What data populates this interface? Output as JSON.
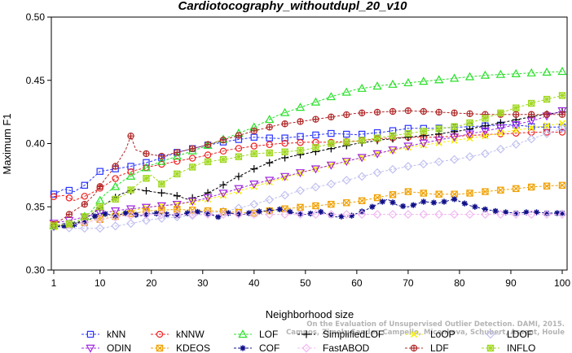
{
  "chart_data": {
    "type": "line",
    "title": "Cardiotocography_withoutdupl_20_v10",
    "xlabel": "Neighborhood size",
    "ylabel": "Maximum F1",
    "xlim": [
      1,
      100
    ],
    "ylim": [
      0.3,
      0.5
    ],
    "xticks": [
      1,
      10,
      20,
      30,
      40,
      50,
      60,
      70,
      80,
      90,
      100
    ],
    "yticks": [
      0.3,
      0.35,
      0.4,
      0.45,
      0.5
    ],
    "ytick_labels": [
      "0.30",
      "0.35",
      "0.40",
      "0.45",
      "0.50"
    ],
    "grid": false,
    "legend_position": "bottom",
    "series": [
      {
        "name": "kNN",
        "color": "#2a35ff",
        "marker": "square",
        "points": [
          [
            1,
            0.36
          ],
          [
            3,
            0.364
          ],
          [
            5,
            0.362
          ],
          [
            7,
            0.367
          ],
          [
            10,
            0.378
          ],
          [
            13,
            0.38
          ],
          [
            16,
            0.382
          ],
          [
            20,
            0.386
          ],
          [
            25,
            0.393
          ],
          [
            30,
            0.398
          ],
          [
            35,
            0.402
          ],
          [
            40,
            0.405
          ],
          [
            45,
            0.404
          ],
          [
            50,
            0.406
          ],
          [
            55,
            0.408
          ],
          [
            60,
            0.407
          ],
          [
            65,
            0.409
          ],
          [
            70,
            0.412
          ],
          [
            75,
            0.412
          ],
          [
            80,
            0.413
          ],
          [
            85,
            0.414
          ],
          [
            90,
            0.415
          ],
          [
            95,
            0.413
          ],
          [
            100,
            0.413
          ]
        ]
      },
      {
        "name": "kNNW",
        "color": "#f02020",
        "marker": "circle",
        "points": [
          [
            1,
            0.358
          ],
          [
            3,
            0.359
          ],
          [
            5,
            0.355
          ],
          [
            8,
            0.36
          ],
          [
            11,
            0.367
          ],
          [
            14,
            0.375
          ],
          [
            17,
            0.379
          ],
          [
            20,
            0.382
          ],
          [
            25,
            0.386
          ],
          [
            30,
            0.39
          ],
          [
            35,
            0.395
          ],
          [
            40,
            0.398
          ],
          [
            45,
            0.4
          ],
          [
            50,
            0.401
          ],
          [
            55,
            0.401
          ],
          [
            60,
            0.402
          ],
          [
            65,
            0.404
          ],
          [
            70,
            0.405
          ],
          [
            75,
            0.405
          ],
          [
            80,
            0.406
          ],
          [
            85,
            0.407
          ],
          [
            90,
            0.408
          ],
          [
            95,
            0.409
          ],
          [
            100,
            0.409
          ]
        ]
      },
      {
        "name": "LOF",
        "color": "#28e028",
        "marker": "triangle",
        "points": [
          [
            1,
            0.335
          ],
          [
            5,
            0.337
          ],
          [
            8,
            0.345
          ],
          [
            11,
            0.36
          ],
          [
            15,
            0.372
          ],
          [
            20,
            0.383
          ],
          [
            25,
            0.39
          ],
          [
            30,
            0.397
          ],
          [
            35,
            0.405
          ],
          [
            40,
            0.413
          ],
          [
            45,
            0.423
          ],
          [
            50,
            0.43
          ],
          [
            55,
            0.437
          ],
          [
            60,
            0.443
          ],
          [
            65,
            0.446
          ],
          [
            70,
            0.448
          ],
          [
            75,
            0.45
          ],
          [
            80,
            0.452
          ],
          [
            85,
            0.454
          ],
          [
            90,
            0.455
          ],
          [
            95,
            0.456
          ],
          [
            100,
            0.457
          ]
        ]
      },
      {
        "name": "SimplifiedLOF",
        "color": "#000000",
        "marker": "plus",
        "points": [
          [
            1,
            0.335
          ],
          [
            5,
            0.336
          ],
          [
            8,
            0.343
          ],
          [
            11,
            0.352
          ],
          [
            14,
            0.36
          ],
          [
            17,
            0.364
          ],
          [
            20,
            0.362
          ],
          [
            24,
            0.36
          ],
          [
            27,
            0.356
          ],
          [
            30,
            0.359
          ],
          [
            33,
            0.365
          ],
          [
            36,
            0.372
          ],
          [
            40,
            0.38
          ],
          [
            45,
            0.388
          ],
          [
            50,
            0.392
          ],
          [
            55,
            0.396
          ],
          [
            60,
            0.4
          ],
          [
            65,
            0.403
          ],
          [
            70,
            0.405
          ],
          [
            75,
            0.407
          ],
          [
            80,
            0.41
          ],
          [
            85,
            0.414
          ],
          [
            90,
            0.418
          ],
          [
            95,
            0.422
          ],
          [
            100,
            0.425
          ]
        ]
      },
      {
        "name": "LoOP",
        "color": "#f5f000",
        "marker": "x",
        "points": [
          [
            1,
            0.334
          ],
          [
            5,
            0.336
          ],
          [
            10,
            0.342
          ],
          [
            15,
            0.346
          ],
          [
            20,
            0.35
          ],
          [
            25,
            0.352
          ],
          [
            30,
            0.355
          ],
          [
            35,
            0.36
          ],
          [
            40,
            0.366
          ],
          [
            45,
            0.372
          ],
          [
            50,
            0.378
          ],
          [
            55,
            0.383
          ],
          [
            60,
            0.388
          ],
          [
            65,
            0.393
          ],
          [
            70,
            0.397
          ],
          [
            75,
            0.4
          ],
          [
            80,
            0.403
          ],
          [
            85,
            0.406
          ],
          [
            90,
            0.41
          ],
          [
            95,
            0.413
          ],
          [
            100,
            0.416
          ]
        ]
      },
      {
        "name": "LDOF",
        "color": "#c0c0f0",
        "marker": "diamond",
        "points": [
          [
            1,
            0.334
          ],
          [
            5,
            0.333
          ],
          [
            10,
            0.333
          ],
          [
            15,
            0.336
          ],
          [
            20,
            0.34
          ],
          [
            25,
            0.342
          ],
          [
            30,
            0.344
          ],
          [
            35,
            0.347
          ],
          [
            40,
            0.352
          ],
          [
            45,
            0.358
          ],
          [
            50,
            0.364
          ],
          [
            55,
            0.368
          ],
          [
            60,
            0.373
          ],
          [
            65,
            0.378
          ],
          [
            70,
            0.382
          ],
          [
            75,
            0.385
          ],
          [
            80,
            0.388
          ],
          [
            85,
            0.392
          ],
          [
            90,
            0.398
          ],
          [
            95,
            0.405
          ],
          [
            100,
            0.412
          ]
        ]
      },
      {
        "name": "ODIN",
        "color": "#a028e0",
        "marker": "triangle-down",
        "points": [
          [
            1,
            0.337
          ],
          [
            5,
            0.34
          ],
          [
            10,
            0.345
          ],
          [
            15,
            0.348
          ],
          [
            20,
            0.35
          ],
          [
            25,
            0.352
          ],
          [
            30,
            0.356
          ],
          [
            35,
            0.362
          ],
          [
            40,
            0.368
          ],
          [
            45,
            0.373
          ],
          [
            50,
            0.378
          ],
          [
            55,
            0.383
          ],
          [
            60,
            0.388
          ],
          [
            65,
            0.393
          ],
          [
            70,
            0.398
          ],
          [
            75,
            0.402
          ],
          [
            80,
            0.406
          ],
          [
            85,
            0.41
          ],
          [
            90,
            0.414
          ],
          [
            95,
            0.419
          ],
          [
            100,
            0.426
          ]
        ]
      },
      {
        "name": "KDEOS",
        "color": "#f0a000",
        "marker": "square-x",
        "points": [
          [
            1,
            0.336
          ],
          [
            5,
            0.336
          ],
          [
            10,
            0.34
          ],
          [
            15,
            0.344
          ],
          [
            20,
            0.347
          ],
          [
            25,
            0.348
          ],
          [
            30,
            0.347
          ],
          [
            35,
            0.346
          ],
          [
            40,
            0.345
          ],
          [
            45,
            0.348
          ],
          [
            50,
            0.35
          ],
          [
            55,
            0.352
          ],
          [
            60,
            0.354
          ],
          [
            65,
            0.358
          ],
          [
            70,
            0.362
          ],
          [
            75,
            0.36
          ],
          [
            80,
            0.36
          ],
          [
            85,
            0.362
          ],
          [
            90,
            0.364
          ],
          [
            95,
            0.366
          ],
          [
            100,
            0.367
          ]
        ]
      },
      {
        "name": "COF",
        "color": "#10108a",
        "marker": "asterisk",
        "points": [
          [
            1,
            0.334
          ],
          [
            5,
            0.336
          ],
          [
            8,
            0.34
          ],
          [
            10,
            0.345
          ],
          [
            13,
            0.343
          ],
          [
            15,
            0.345
          ],
          [
            18,
            0.343
          ],
          [
            20,
            0.345
          ],
          [
            23,
            0.344
          ],
          [
            25,
            0.343
          ],
          [
            28,
            0.346
          ],
          [
            30,
            0.346
          ],
          [
            33,
            0.342
          ],
          [
            35,
            0.345
          ],
          [
            38,
            0.344
          ],
          [
            40,
            0.346
          ],
          [
            43,
            0.347
          ],
          [
            45,
            0.348
          ],
          [
            48,
            0.345
          ],
          [
            50,
            0.344
          ],
          [
            53,
            0.346
          ],
          [
            56,
            0.342
          ],
          [
            59,
            0.343
          ],
          [
            62,
            0.348
          ],
          [
            64,
            0.352
          ],
          [
            66,
            0.356
          ],
          [
            68,
            0.351
          ],
          [
            70,
            0.35
          ],
          [
            73,
            0.354
          ],
          [
            76,
            0.353
          ],
          [
            79,
            0.356
          ],
          [
            82,
            0.351
          ],
          [
            85,
            0.348
          ],
          [
            88,
            0.346
          ],
          [
            91,
            0.345
          ],
          [
            94,
            0.346
          ],
          [
            97,
            0.345
          ],
          [
            100,
            0.345
          ]
        ]
      },
      {
        "name": "FastABOD",
        "color": "#f0b8f0",
        "marker": "diamond",
        "points": [
          [
            1,
            0.336
          ],
          [
            5,
            0.336
          ],
          [
            10,
            0.34
          ],
          [
            15,
            0.343
          ],
          [
            20,
            0.344
          ],
          [
            30,
            0.344
          ],
          [
            40,
            0.344
          ],
          [
            50,
            0.344
          ],
          [
            60,
            0.344
          ],
          [
            70,
            0.344
          ],
          [
            80,
            0.344
          ],
          [
            90,
            0.344
          ],
          [
            100,
            0.344
          ]
        ]
      },
      {
        "name": "LDF",
        "color": "#b02828",
        "marker": "circle-plus",
        "points": [
          [
            1,
            0.336
          ],
          [
            3,
            0.341
          ],
          [
            5,
            0.347
          ],
          [
            7,
            0.352
          ],
          [
            9,
            0.36
          ],
          [
            11,
            0.372
          ],
          [
            13,
            0.382
          ],
          [
            15,
            0.395
          ],
          [
            16,
            0.406
          ],
          [
            17,
            0.395
          ],
          [
            19,
            0.392
          ],
          [
            22,
            0.39
          ],
          [
            25,
            0.393
          ],
          [
            30,
            0.398
          ],
          [
            35,
            0.404
          ],
          [
            40,
            0.41
          ],
          [
            45,
            0.415
          ],
          [
            50,
            0.418
          ],
          [
            55,
            0.421
          ],
          [
            60,
            0.424
          ],
          [
            65,
            0.425
          ],
          [
            70,
            0.426
          ],
          [
            75,
            0.425
          ],
          [
            80,
            0.424
          ],
          [
            85,
            0.423
          ],
          [
            90,
            0.423
          ],
          [
            95,
            0.423
          ],
          [
            100,
            0.423
          ]
        ]
      },
      {
        "name": "INFLO",
        "color": "#a0d820",
        "marker": "starburst",
        "points": [
          [
            1,
            0.335
          ],
          [
            5,
            0.337
          ],
          [
            10,
            0.35
          ],
          [
            15,
            0.36
          ],
          [
            18,
            0.37
          ],
          [
            20,
            0.375
          ],
          [
            22,
            0.368
          ],
          [
            25,
            0.376
          ],
          [
            30,
            0.385
          ],
          [
            35,
            0.388
          ],
          [
            40,
            0.392
          ],
          [
            45,
            0.393
          ],
          [
            50,
            0.395
          ],
          [
            55,
            0.4
          ],
          [
            60,
            0.402
          ],
          [
            65,
            0.405
          ],
          [
            70,
            0.408
          ],
          [
            75,
            0.411
          ],
          [
            80,
            0.414
          ],
          [
            85,
            0.42
          ],
          [
            90,
            0.427
          ],
          [
            95,
            0.433
          ],
          [
            100,
            0.438
          ]
        ]
      }
    ],
    "legend_rows": [
      [
        "kNN",
        "kNNW",
        "LOF",
        "SimplifiedLOF",
        "LoOP",
        "LDOF"
      ],
      [
        "ODIN",
        "KDEOS",
        "COF",
        "FastABOD",
        "LDF",
        "INFLO"
      ]
    ],
    "watermark_lines": [
      "Campos, Zimek, Sander, Campello, Micenkova, Schubert, Assent, Houle",
      "On the Evaluation of Unsupervised Outlier Detection. DAMI, 2015."
    ]
  }
}
